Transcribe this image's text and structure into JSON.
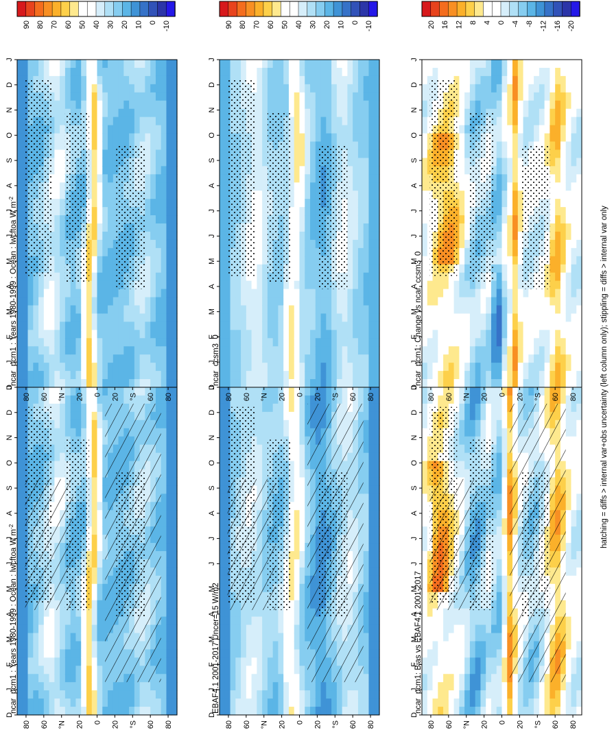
{
  "figure": {
    "footnote": "hatching = diffs > internal var+obs uncertainty (left column only); stippling = diffs > internal var only"
  },
  "chart_data": [
    {
      "type": "heatmap",
      "id": "p1",
      "title": "ncar_pcm1 : Years 1980-1999 : Ocean : lwcftoa W m",
      "title_sup": "-2",
      "colorbar": "cb1",
      "field": "model",
      "hatching": true,
      "stippling": true
    },
    {
      "type": "heatmap",
      "id": "p2",
      "title": "ncar_pcm1 : Years 1980-1999 : Ocean : lwcftoa W m",
      "title_sup": "-2",
      "colorbar": "cb1",
      "field": "model",
      "hatching": false,
      "stippling": true
    },
    {
      "type": "heatmap",
      "id": "p3",
      "title": "EBAF4.1 2001-2017 Uncer=15 W/m2",
      "title_sup": "",
      "colorbar": "cb1",
      "field": "obs",
      "hatching": true,
      "stippling": true
    },
    {
      "type": "heatmap",
      "id": "p4",
      "title": "ncar_ccsm3_0",
      "title_sup": "",
      "colorbar": "cb1",
      "field": "ccsm",
      "hatching": false,
      "stippling": true
    },
    {
      "type": "heatmap",
      "id": "p5",
      "title": "ncar_pcm1: Bias vs EBAF4.1 2001-2017",
      "title_sup": "",
      "colorbar": "cb2",
      "field": "bias",
      "hatching": true,
      "stippling": true
    },
    {
      "type": "heatmap",
      "id": "p6",
      "title": "ncar_pcm1: Change vs ncar_ccsm3_0",
      "title_sup": "",
      "colorbar": "cb2",
      "field": "change",
      "hatching": false,
      "stippling": true
    }
  ],
  "axes": {
    "months": [
      "D",
      "J",
      "F",
      "M",
      "A",
      "M",
      "J",
      "J",
      "A",
      "S",
      "O",
      "N",
      "D",
      "J"
    ],
    "lat_labels": [
      "80",
      "60",
      "°N",
      "20",
      "0",
      "20",
      "°S",
      "60",
      "80"
    ],
    "lat_values": [
      80,
      60,
      40,
      20,
      0,
      -20,
      -40,
      -60,
      -80
    ]
  },
  "colorbars": {
    "cb1": {
      "labels": [
        "90",
        "80",
        "70",
        "60",
        "50",
        "40",
        "30",
        "20",
        "10",
        "0",
        "-10"
      ],
      "colors": [
        "#d7191c",
        "#e8431d",
        "#f46d1e",
        "#f88f23",
        "#fbb02a",
        "#fdd04a",
        "#fee98e",
        "#ffffff",
        "#ffffff",
        "#d6eefa",
        "#b0e0f6",
        "#86cdf0",
        "#5bb5e6",
        "#3f93d6",
        "#3672c8",
        "#3152b8",
        "#2b35a8",
        "#2418e8"
      ]
    },
    "cb2": {
      "labels": [
        "20",
        "16",
        "12",
        "8",
        "4",
        "0",
        "-4",
        "-8",
        "-12",
        "-16",
        "-20"
      ],
      "colors": [
        "#d7191c",
        "#e8431d",
        "#f46d1e",
        "#f88f23",
        "#fbb02a",
        "#fdd04a",
        "#fee98e",
        "#ffffff",
        "#ffffff",
        "#d6eefa",
        "#b0e0f6",
        "#86cdf0",
        "#5bb5e6",
        "#3f93d6",
        "#3672c8",
        "#3152b8",
        "#2b35a8",
        "#2418e8"
      ]
    }
  }
}
